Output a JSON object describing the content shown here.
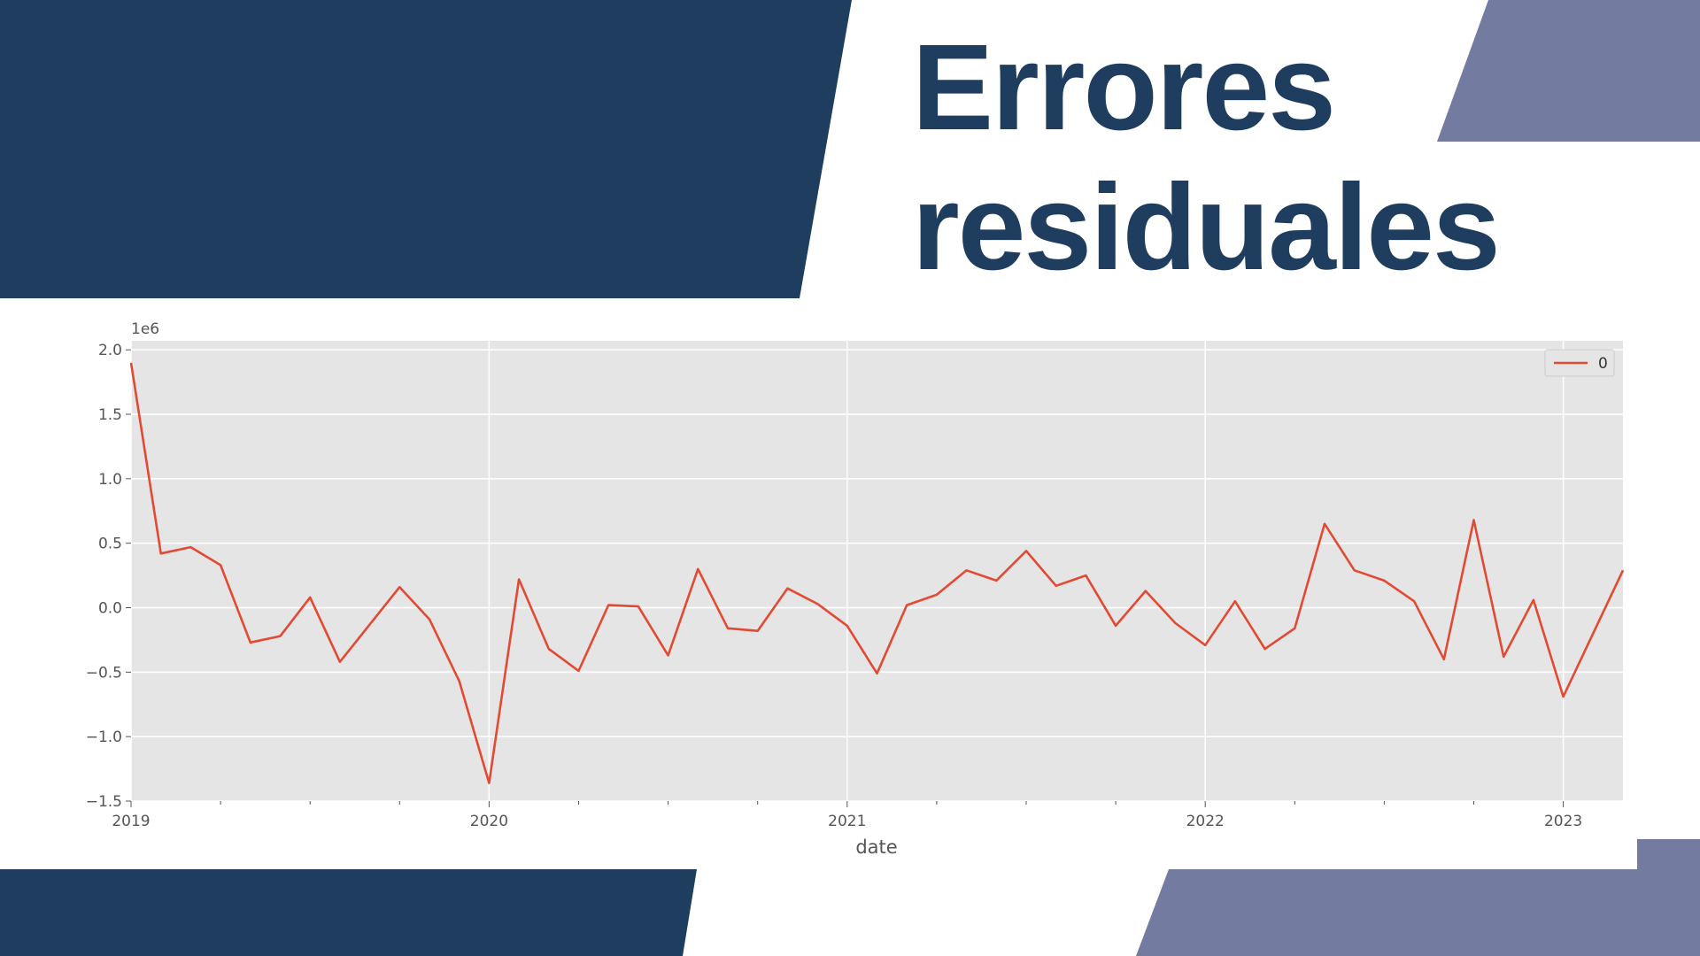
{
  "colors": {
    "navy": "#1e3d5f",
    "slate": "#737ba1",
    "plot_bg": "#e5e5e5",
    "grid": "#ffffff",
    "line": "#e24a33",
    "text": "#555555"
  },
  "title": {
    "line1": "Errores",
    "line2": "residuales"
  },
  "chart_data": {
    "type": "line",
    "xlabel": "date",
    "ylabel": "",
    "y_multiplier_label": "1e6",
    "ylim": [
      -1.5,
      2.0
    ],
    "xlim": [
      "2019-01",
      "2023-03"
    ],
    "grid": true,
    "legend_position": "top-right",
    "x_ticks": [
      "2019",
      "2020",
      "2021",
      "2022",
      "2023"
    ],
    "y_ticks": [
      "2.0",
      "1.5",
      "1.0",
      "0.5",
      "0.0",
      "−0.5",
      "−1.0",
      "−1.5"
    ],
    "y_tick_values": [
      2.0,
      1.5,
      1.0,
      0.5,
      0.0,
      -0.5,
      -1.0,
      -1.5
    ],
    "x": [
      "2019-01",
      "2019-02",
      "2019-03",
      "2019-04",
      "2019-05",
      "2019-06",
      "2019-07",
      "2019-08",
      "2019-09",
      "2019-10",
      "2019-11",
      "2019-12",
      "2020-01",
      "2020-02",
      "2020-03",
      "2020-04",
      "2020-05",
      "2020-06",
      "2020-07",
      "2020-08",
      "2020-09",
      "2020-10",
      "2020-11",
      "2020-12",
      "2021-01",
      "2021-02",
      "2021-03",
      "2021-04",
      "2021-05",
      "2021-06",
      "2021-07",
      "2021-08",
      "2021-09",
      "2021-10",
      "2021-11",
      "2021-12",
      "2022-01",
      "2022-02",
      "2022-03",
      "2022-04",
      "2022-05",
      "2022-06",
      "2022-07",
      "2022-08",
      "2022-09",
      "2022-10",
      "2022-11",
      "2022-12",
      "2023-01",
      "2023-02",
      "2023-03"
    ],
    "series": [
      {
        "name": "0",
        "color": "#e24a33",
        "values": [
          1.9,
          0.42,
          0.47,
          0.33,
          -0.27,
          -0.22,
          0.08,
          -0.42,
          -0.13,
          0.16,
          -0.09,
          -0.57,
          -1.36,
          0.22,
          -0.32,
          -0.49,
          0.02,
          0.01,
          -0.37,
          0.3,
          -0.16,
          -0.18,
          0.15,
          0.03,
          -0.14,
          -0.51,
          0.02,
          0.1,
          0.29,
          0.21,
          0.44,
          0.17,
          0.25,
          -0.14,
          0.13,
          -0.12,
          -0.29,
          0.05,
          -0.32,
          -0.16,
          0.65,
          0.29,
          0.21,
          0.05,
          -0.4,
          0.68,
          -0.38,
          0.06,
          -0.69,
          -0.2,
          0.29
        ]
      }
    ]
  }
}
